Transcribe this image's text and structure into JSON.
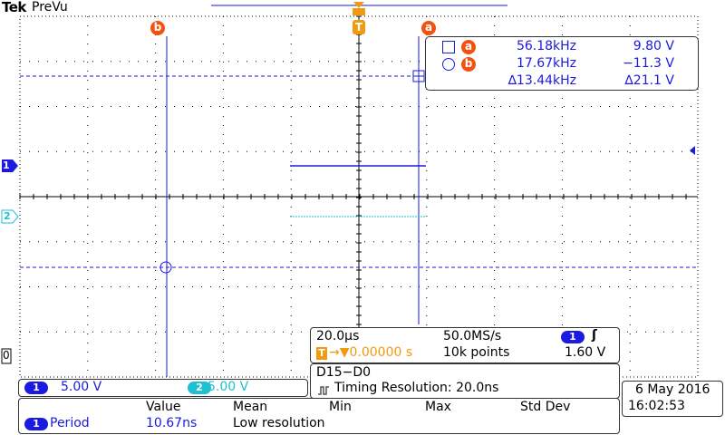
{
  "header": {
    "brand": "Tek",
    "mode": "PreVu"
  },
  "markers": {
    "cursor_a_label": "a",
    "cursor_b_label": "b",
    "trigger_label": "T",
    "ch1_label": "1",
    "ch2_label": "2",
    "ground_label": "0"
  },
  "cursor_readout": {
    "row_a": {
      "badge": "a",
      "freq": "56.18kHz",
      "volt": "9.80 V"
    },
    "row_b": {
      "badge": "b",
      "freq": "17.67kHz",
      "volt": "−11.3 V"
    },
    "delta": {
      "freq": "∆13.44kHz",
      "volt": "∆21.1 V"
    }
  },
  "timebase": {
    "scale": "20.0µs",
    "sample_rate": "50.0MS/s",
    "trigger_channel": "1",
    "trigger_slope": "ʃ",
    "trigger_badge": "T",
    "trigger_pos": "→▼0.00000 s",
    "record_length": "10k points",
    "trigger_level": "1.60 V"
  },
  "digital": {
    "title": "D15−D0",
    "resolution": "Timing Resolution: 20.0ns"
  },
  "channels": {
    "ch1": {
      "badge": "1",
      "scale": "5.00 V"
    },
    "ch2": {
      "badge": "2",
      "scale": "5.00 V"
    }
  },
  "measurement": {
    "headers": [
      "Value",
      "Mean",
      "Min",
      "Max",
      "Std Dev"
    ],
    "row": {
      "badge": "1",
      "name": "Period",
      "value": "10.67ns",
      "mean": "Low resolution"
    }
  },
  "datetime": {
    "date": "6 May 2016",
    "time": "16:02:53"
  },
  "colors": {
    "ch1": "#1a1ae0",
    "ch2": "#1ec0d2",
    "cursor": "#f2510f",
    "trigger": "#f29a0f"
  }
}
